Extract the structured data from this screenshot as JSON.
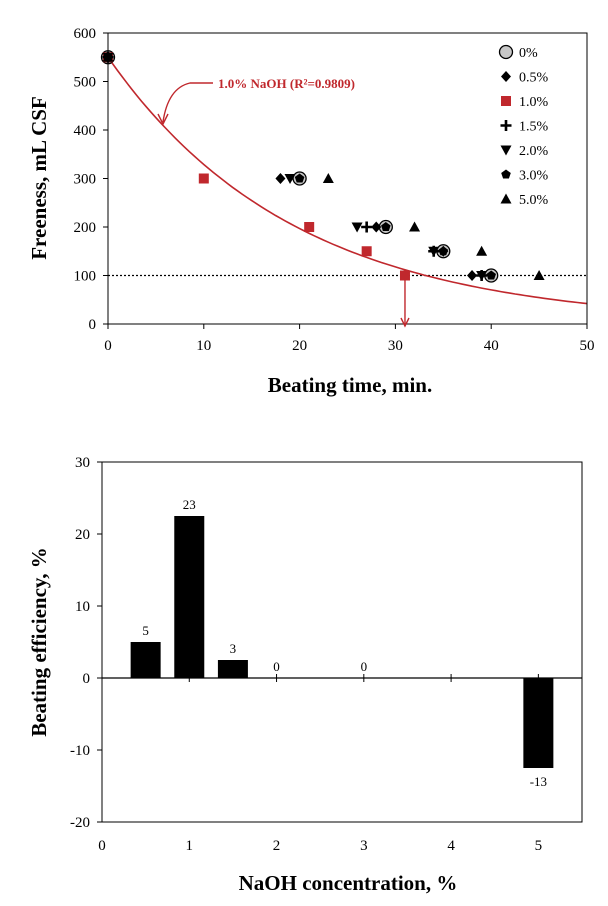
{
  "chart_data": [
    {
      "type": "scatter",
      "xlabel": "Beating time, min.",
      "ylabel": "Freeness, mL CSF",
      "xlim": [
        0,
        50
      ],
      "ylim": [
        0,
        600
      ],
      "x_ticks": [
        "0",
        "10",
        "20",
        "30",
        "40",
        "50"
      ],
      "y_ticks": [
        "0",
        "100",
        "200",
        "300",
        "400",
        "500",
        "600"
      ],
      "legend_position": "right",
      "reference_line_y": 100,
      "series": [
        {
          "name": "0%",
          "marker": "open-circle",
          "points": [
            [
              0,
              550
            ],
            [
              20,
              300
            ],
            [
              29,
              200
            ],
            [
              35,
              150
            ],
            [
              40,
              100
            ]
          ]
        },
        {
          "name": "0.5%",
          "marker": "diamond",
          "points": [
            [
              0,
              550
            ],
            [
              18,
              300
            ],
            [
              28,
              200
            ],
            [
              35,
              150
            ],
            [
              38,
              100
            ]
          ]
        },
        {
          "name": "1.0%",
          "marker": "square",
          "color": "#c0282d",
          "points": [
            [
              0,
              550
            ],
            [
              10,
              300
            ],
            [
              21,
              200
            ],
            [
              27,
              150
            ],
            [
              31,
              100
            ]
          ]
        },
        {
          "name": "1.5%",
          "marker": "plus",
          "points": [
            [
              0,
              550
            ],
            [
              27,
              200
            ],
            [
              34,
              150
            ],
            [
              39,
              100
            ]
          ]
        },
        {
          "name": "2.0%",
          "marker": "triangle-down",
          "points": [
            [
              0,
              550
            ],
            [
              19,
              300
            ],
            [
              26,
              200
            ],
            [
              34,
              150
            ],
            [
              39,
              100
            ]
          ]
        },
        {
          "name": "3.0%",
          "marker": "pentagon",
          "points": [
            [
              0,
              550
            ],
            [
              20,
              300
            ],
            [
              29,
              200
            ],
            [
              35,
              150
            ],
            [
              40,
              100
            ]
          ]
        },
        {
          "name": "5.0%",
          "marker": "triangle-up",
          "points": [
            [
              0,
              550
            ],
            [
              23,
              300
            ],
            [
              32,
              200
            ],
            [
              39,
              150
            ],
            [
              45,
              100
            ]
          ]
        }
      ],
      "fit": {
        "series": "1.0%",
        "color": "#c0282d",
        "a": 550,
        "k": 0.0514
      },
      "annotation": "1.0% NaOH (R²=0.9809)",
      "target_marker_x": 31
    },
    {
      "type": "bar",
      "xlabel": "NaOH concentration, %",
      "ylabel": "Beating  efficiency, %",
      "xlim": [
        0,
        5.5
      ],
      "ylim": [
        -20,
        30
      ],
      "x_ticks": [
        "0",
        "1",
        "2",
        "3",
        "4",
        "5"
      ],
      "y_ticks": [
        "-20",
        "-10",
        "0",
        "10",
        "20",
        "30"
      ],
      "bars": [
        {
          "x": 0.5,
          "value": 5,
          "label": "5"
        },
        {
          "x": 1.0,
          "value": 22.5,
          "label": "23"
        },
        {
          "x": 1.5,
          "value": 2.5,
          "label": "3"
        },
        {
          "x": 2.0,
          "value": 0,
          "label": "0"
        },
        {
          "x": 3.0,
          "value": 0,
          "label": "0"
        },
        {
          "x": 5.0,
          "value": -12.5,
          "label": "-13"
        }
      ]
    }
  ]
}
